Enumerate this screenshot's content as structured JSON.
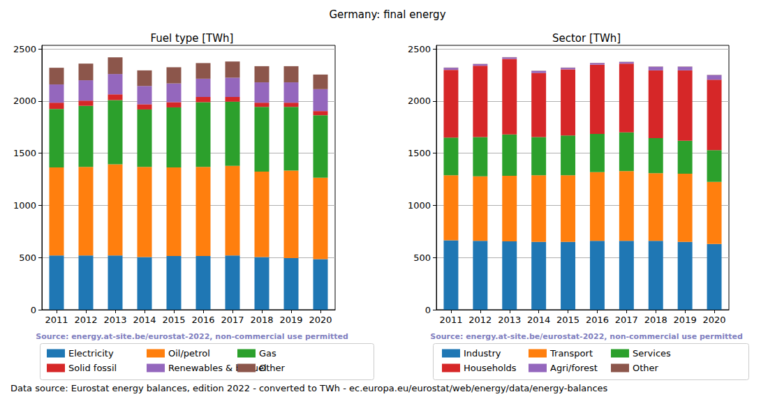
{
  "title": "Germany: final energy",
  "footer": "Data source: Eurostat energy balances, edition 2022 - converted to TWh - ec.europa.eu/eurostat/web/energy/data/energy-balances",
  "chart_data": [
    {
      "type": "bar",
      "title": "Fuel type [TWh]",
      "source": "Source: energy.at-site.be/eurostat-2022, non-commercial use permitted",
      "stacked": true,
      "grid": true,
      "legend": "bottom",
      "categories": [
        "2011",
        "2012",
        "2013",
        "2014",
        "2015",
        "2016",
        "2017",
        "2018",
        "2019",
        "2020"
      ],
      "ylim": [
        0,
        2535
      ],
      "yticks": [
        0,
        500,
        1000,
        1500,
        2000,
        2500
      ],
      "series": [
        {
          "name": "Electricity",
          "color": "#1f77b4",
          "values": [
            520,
            520,
            520,
            505,
            515,
            515,
            520,
            505,
            495,
            485
          ]
        },
        {
          "name": "Oil/petrol",
          "color": "#ff7f0e",
          "values": [
            845,
            850,
            875,
            865,
            850,
            855,
            860,
            820,
            840,
            780
          ]
        },
        {
          "name": "Gas",
          "color": "#2ca02c",
          "values": [
            560,
            585,
            615,
            550,
            575,
            620,
            615,
            620,
            610,
            600
          ]
        },
        {
          "name": "Solid fossil",
          "color": "#d62728",
          "values": [
            60,
            50,
            55,
            50,
            50,
            50,
            45,
            40,
            40,
            40
          ]
        },
        {
          "name": "Renewables & biofuel",
          "color": "#9467bd",
          "values": [
            175,
            195,
            195,
            175,
            180,
            175,
            185,
            195,
            195,
            210
          ]
        },
        {
          "name": "Other",
          "color": "#8c564b",
          "values": [
            160,
            160,
            160,
            150,
            155,
            150,
            155,
            155,
            155,
            140
          ]
        }
      ]
    },
    {
      "type": "bar",
      "title": "Sector [TWh]",
      "source": "Source: energy.at-site.be/eurostat-2022, non-commercial use permitted",
      "stacked": true,
      "grid": true,
      "legend": "bottom",
      "categories": [
        "2011",
        "2012",
        "2013",
        "2014",
        "2015",
        "2016",
        "2017",
        "2018",
        "2019",
        "2020"
      ],
      "ylim": [
        0,
        2535
      ],
      "yticks": [
        0,
        500,
        1000,
        1500,
        2000,
        2500
      ],
      "series": [
        {
          "name": "Industry",
          "color": "#1f77b4",
          "values": [
            665,
            660,
            655,
            650,
            650,
            660,
            660,
            660,
            650,
            630
          ]
        },
        {
          "name": "Transport",
          "color": "#ff7f0e",
          "values": [
            625,
            620,
            630,
            640,
            640,
            660,
            670,
            650,
            655,
            595
          ]
        },
        {
          "name": "Services",
          "color": "#2ca02c",
          "values": [
            360,
            375,
            395,
            365,
            380,
            365,
            370,
            335,
            315,
            305
          ]
        },
        {
          "name": "Households",
          "color": "#d62728",
          "values": [
            650,
            685,
            725,
            615,
            635,
            665,
            660,
            650,
            675,
            675
          ]
        },
        {
          "name": "Agri/forest",
          "color": "#9467bd",
          "values": [
            20,
            15,
            15,
            20,
            15,
            15,
            15,
            35,
            35,
            45
          ]
        },
        {
          "name": "Other",
          "color": "#8c564b",
          "values": [
            2,
            2,
            2,
            2,
            2,
            2,
            2,
            2,
            2,
            2
          ]
        }
      ]
    }
  ]
}
